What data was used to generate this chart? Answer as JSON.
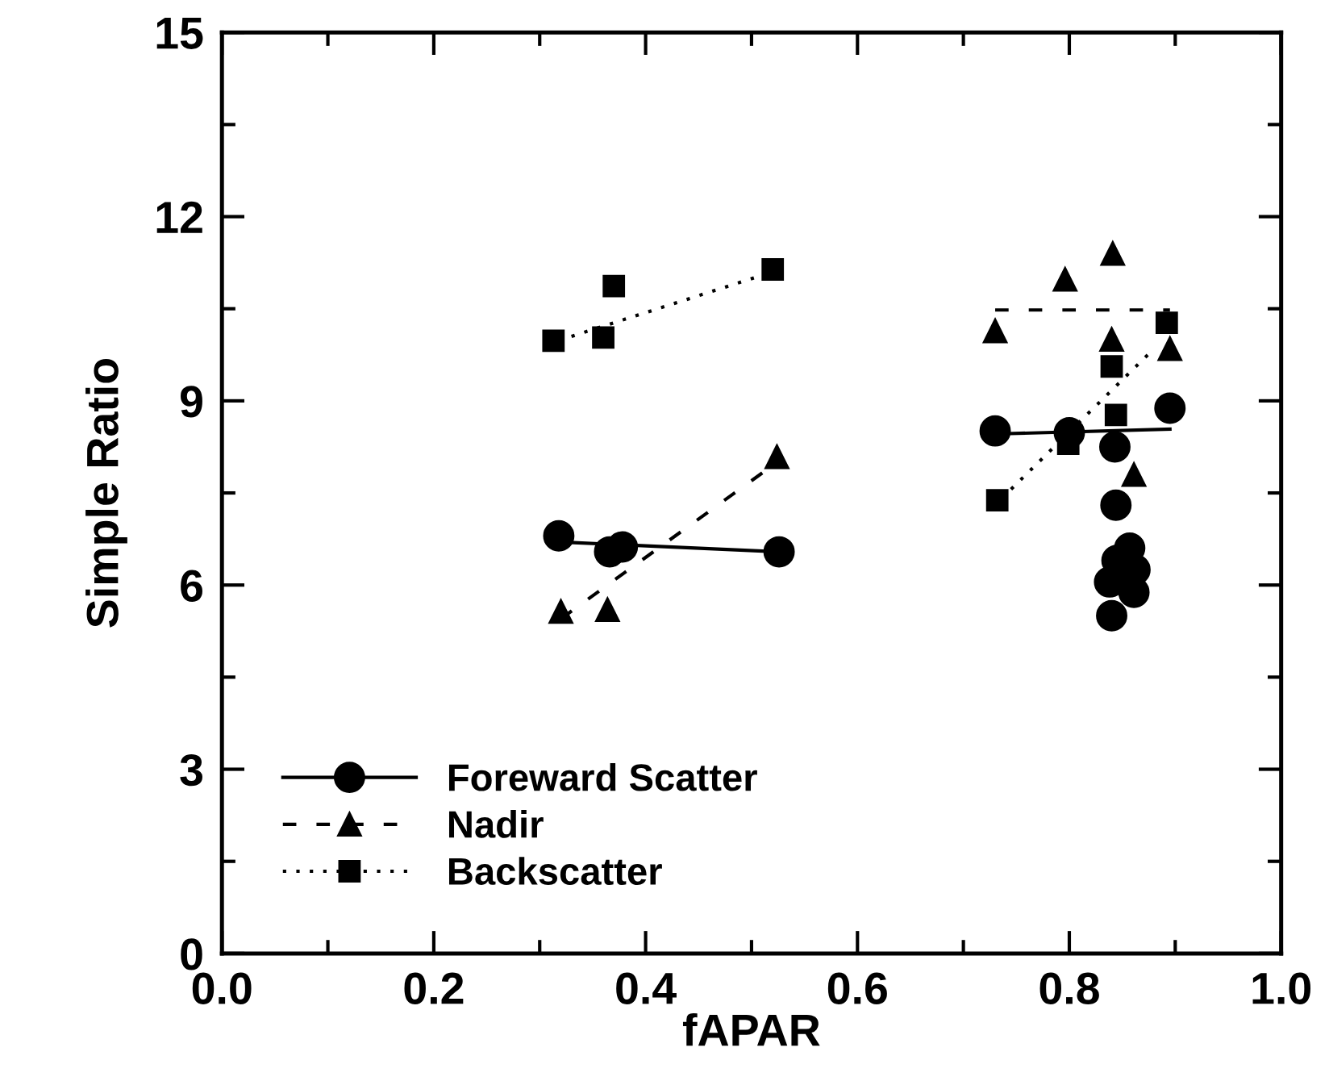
{
  "chart_data": {
    "type": "scatter",
    "xlabel": "fAPAR",
    "ylabel": "Simple Ratio",
    "xlim": [
      0.0,
      1.0
    ],
    "ylim": [
      0,
      15
    ],
    "xticks": [
      {
        "value": 0.0,
        "label": "0.0"
      },
      {
        "value": 0.1,
        "label": null
      },
      {
        "value": 0.2,
        "label": "0.2"
      },
      {
        "value": 0.3,
        "label": null
      },
      {
        "value": 0.4,
        "label": "0.4"
      },
      {
        "value": 0.5,
        "label": null
      },
      {
        "value": 0.6,
        "label": "0.6"
      },
      {
        "value": 0.7,
        "label": null
      },
      {
        "value": 0.8,
        "label": "0.8"
      },
      {
        "value": 0.9,
        "label": null
      },
      {
        "value": 1.0,
        "label": "1.0"
      }
    ],
    "yticks": [
      0,
      {
        "value": 1.5,
        "label": null
      },
      3,
      {
        "value": 4.5,
        "label": null
      },
      6,
      {
        "value": 7.5,
        "label": null
      },
      9,
      {
        "value": 10.5,
        "label": null
      },
      12,
      {
        "value": 13.5,
        "label": null
      },
      15
    ],
    "grid": false,
    "legend": "bottom left",
    "series": [
      {
        "name": "Foreward Scatter",
        "marker": "circle",
        "line_style": "solid",
        "color": "#000000",
        "x": [
          0.318,
          0.366,
          0.378,
          0.526,
          0.73,
          0.8,
          0.895,
          0.843,
          0.844,
          0.857,
          0.845,
          0.838,
          0.861,
          0.84,
          0.862
        ],
        "values": [
          6.8,
          6.54,
          6.62,
          6.54,
          8.51,
          8.48,
          8.88,
          8.25,
          7.3,
          6.6,
          6.4,
          6.05,
          5.88,
          5.5,
          6.25
        ]
      },
      {
        "name": "Nadir",
        "marker": "triangle",
        "line_style": "dashed",
        "color": "#000000",
        "x": [
          0.32,
          0.364,
          0.524,
          0.841,
          0.796,
          0.73,
          0.84,
          0.895,
          0.861
        ],
        "values": [
          5.57,
          5.6,
          8.09,
          11.4,
          10.98,
          10.14,
          10.0,
          9.85,
          7.8
        ]
      },
      {
        "name": "Backscatter",
        "marker": "square",
        "line_style": "dotted",
        "color": "#000000",
        "x": [
          0.313,
          0.36,
          0.37,
          0.52,
          0.892,
          0.84,
          0.844,
          0.799,
          0.732
        ],
        "values": [
          9.98,
          10.03,
          10.87,
          11.14,
          10.27,
          9.56,
          8.77,
          8.3,
          7.38
        ]
      },
      {
        "type": "line",
        "line_style": "solid",
        "color": "#000000",
        "x": [
          0.32,
          0.526
        ],
        "values": [
          6.7,
          6.54
        ]
      },
      {
        "type": "line",
        "line_style": "dashed",
        "color": "#000000",
        "x": [
          0.32,
          0.524
        ],
        "values": [
          5.45,
          8.0
        ]
      },
      {
        "type": "line",
        "line_style": "dotted",
        "color": "#000000",
        "x": [
          0.33,
          0.52
        ],
        "values": [
          10.05,
          11.1
        ]
      },
      {
        "type": "line",
        "line_style": "solid",
        "color": "#000000",
        "x": [
          0.73,
          0.895
        ],
        "values": [
          8.46,
          8.54
        ]
      },
      {
        "type": "line",
        "line_style": "dashed",
        "color": "#000000",
        "x": [
          0.73,
          0.895
        ],
        "values": [
          10.48,
          10.48
        ]
      },
      {
        "type": "line",
        "line_style": "dotted",
        "color": "#000000",
        "x": [
          0.745,
          0.88
        ],
        "values": [
          7.56,
          9.85
        ]
      }
    ]
  }
}
